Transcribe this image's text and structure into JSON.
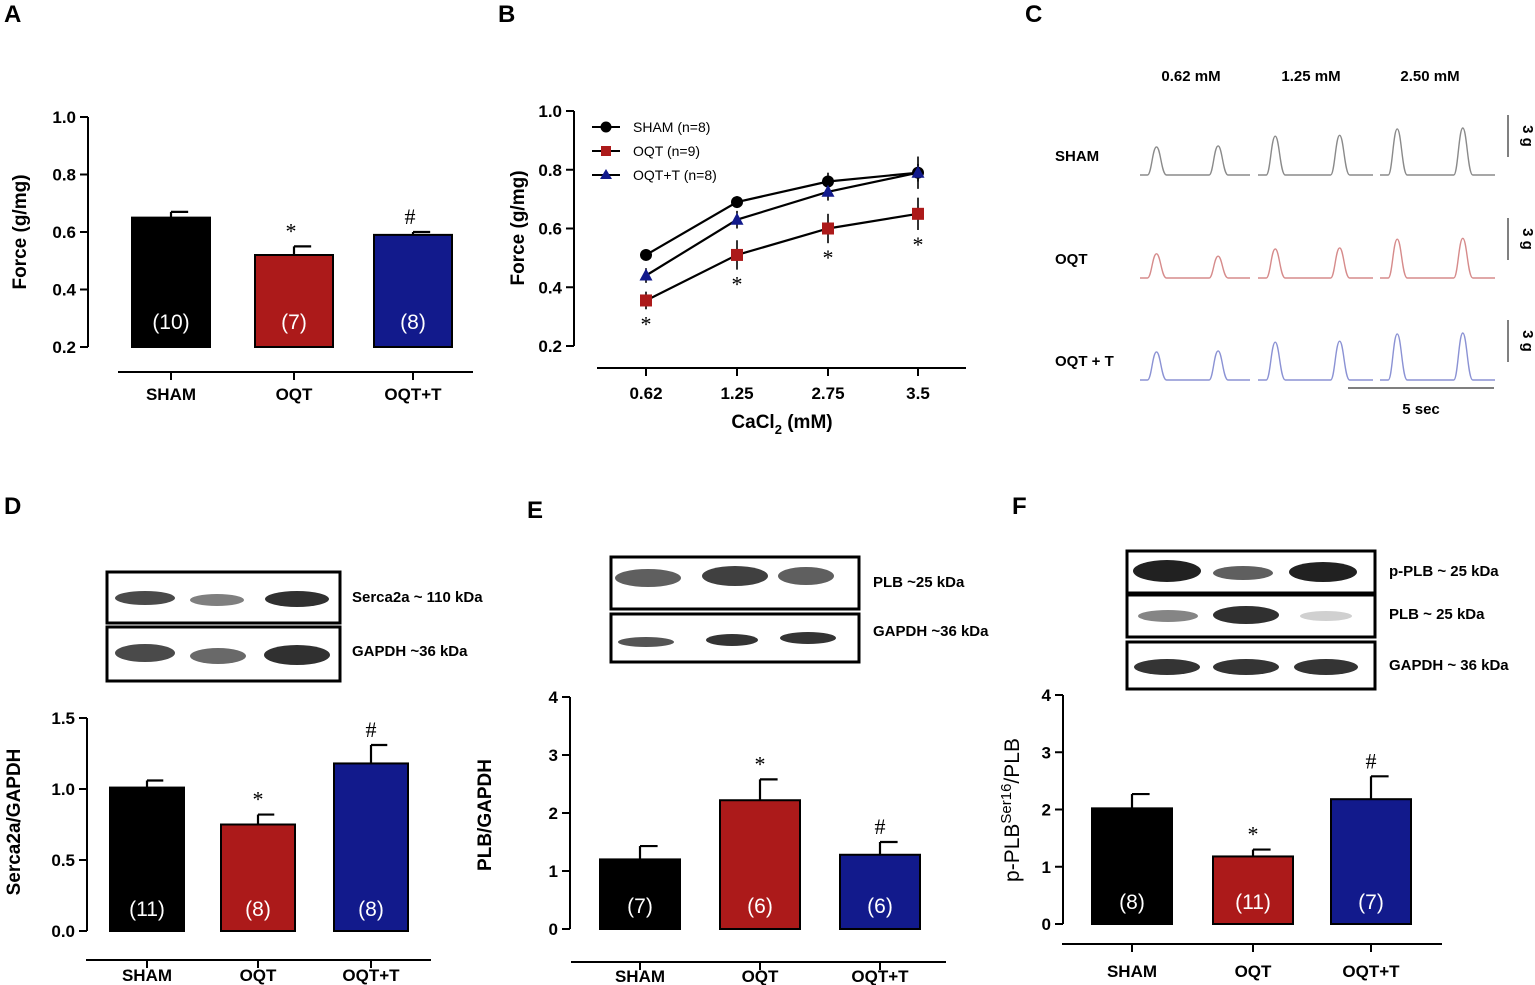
{
  "colors": {
    "sham": "#000000",
    "oqt": "#ac1a1a",
    "oqtt": "#121a8c"
  },
  "panels": {
    "A": "A",
    "B": "B",
    "C": "C",
    "D": "D",
    "E": "E",
    "F": "F"
  },
  "chart_data": [
    {
      "id": "A",
      "type": "bar",
      "ylabel": "Force (g/mg)",
      "categories": [
        "SHAM",
        "OQT",
        "OQT+T"
      ],
      "values": [
        0.65,
        0.52,
        0.59
      ],
      "errors": [
        0.02,
        0.03,
        0.01
      ],
      "n_labels": [
        "(10)",
        "(7)",
        "(8)"
      ],
      "sig": [
        "",
        "*",
        "#"
      ],
      "ylim": [
        0.2,
        1.0
      ],
      "yticks": [
        "0.2",
        "0.4",
        "0.6",
        "0.8",
        "1.0"
      ]
    },
    {
      "id": "B",
      "type": "line",
      "ylabel": "Force (g/mg)",
      "xlabel_main": "CaCl",
      "xlabel_sub": "2",
      "xlabel_unit": " (mM)",
      "x": [
        "0.62",
        "1.25",
        "2.75",
        "3.5"
      ],
      "ylim": [
        0.2,
        1.0
      ],
      "yticks": [
        "0.2",
        "0.4",
        "0.6",
        "0.8",
        "1.0"
      ],
      "series": [
        {
          "name": "SHAM (n=8)",
          "marker": "circle",
          "values": [
            0.51,
            0.69,
            0.76,
            0.79
          ],
          "errors": [
            0.015,
            0.02,
            0.03,
            0.03
          ]
        },
        {
          "name": "OQT (n=9)",
          "marker": "square",
          "values": [
            0.355,
            0.51,
            0.6,
            0.65
          ],
          "errors": [
            0.03,
            0.05,
            0.05,
            0.055
          ]
        },
        {
          "name": "OQT+T (n=8)",
          "marker": "triangle",
          "values": [
            0.44,
            0.63,
            0.725,
            0.79
          ],
          "errors": [
            0.025,
            0.03,
            0.03,
            0.055
          ]
        }
      ],
      "sig_under_oqt": [
        "*",
        "*",
        "*",
        "*"
      ]
    },
    {
      "id": "D",
      "type": "bar",
      "ylabel": "Serca2a/GAPDH",
      "categories": [
        "SHAM",
        "OQT",
        "OQT+T"
      ],
      "values": [
        1.01,
        0.75,
        1.18
      ],
      "errors": [
        0.05,
        0.07,
        0.13
      ],
      "n_labels": [
        "(11)",
        "(8)",
        "(8)"
      ],
      "sig": [
        "",
        "*",
        "#"
      ],
      "ylim": [
        0.0,
        1.5
      ],
      "yticks": [
        "0.0",
        "0.5",
        "1.0",
        "1.5"
      ]
    },
    {
      "id": "E",
      "type": "bar",
      "ylabel": "PLB/GAPDH",
      "categories": [
        "SHAM",
        "OQT",
        "OQT+T"
      ],
      "values": [
        1.2,
        2.22,
        1.28
      ],
      "errors": [
        0.23,
        0.36,
        0.22
      ],
      "n_labels": [
        "(7)",
        "(6)",
        "(6)"
      ],
      "sig": [
        "",
        "*",
        "#"
      ],
      "ylim": [
        0,
        4
      ],
      "yticks": [
        "0",
        "1",
        "2",
        "3",
        "4"
      ]
    },
    {
      "id": "F",
      "type": "bar",
      "ylabel_main": "p-PLB",
      "ylabel_sup": "Ser16",
      "ylabel_tail": "/PLB",
      "categories": [
        "SHAM",
        "OQT",
        "OQT+T"
      ],
      "values": [
        2.02,
        1.18,
        2.18
      ],
      "errors": [
        0.25,
        0.12,
        0.4
      ],
      "n_labels": [
        "(8)",
        "(11)",
        "(7)"
      ],
      "sig": [
        "",
        "*",
        "#"
      ],
      "ylim": [
        0,
        4
      ],
      "yticks": [
        "0",
        "1",
        "2",
        "3",
        "4"
      ]
    }
  ],
  "traces": {
    "concentrations": [
      "0.62 mM",
      "1.25 mM",
      "2.50 mM"
    ],
    "rows": [
      "SHAM",
      "OQT",
      "OQT + T"
    ],
    "amplitudes": [
      [
        0.58,
        0.6,
        0.8,
        0.82,
        0.95,
        0.97
      ],
      [
        0.5,
        0.45,
        0.6,
        0.62,
        0.8,
        0.82
      ],
      [
        0.58,
        0.6,
        0.78,
        0.8,
        0.95,
        0.97
      ]
    ],
    "scale_label": "3 g",
    "time_label": "5 sec"
  },
  "blots": {
    "D": [
      "Serca2a ~ 110 kDa",
      "GAPDH ~36 kDa"
    ],
    "E": [
      "PLB ~25 kDa",
      "GAPDH ~36 kDa"
    ],
    "F": [
      "p-PLB ~ 25 kDa",
      "PLB ~ 25 kDa",
      "GAPDH ~ 36 kDa"
    ]
  }
}
